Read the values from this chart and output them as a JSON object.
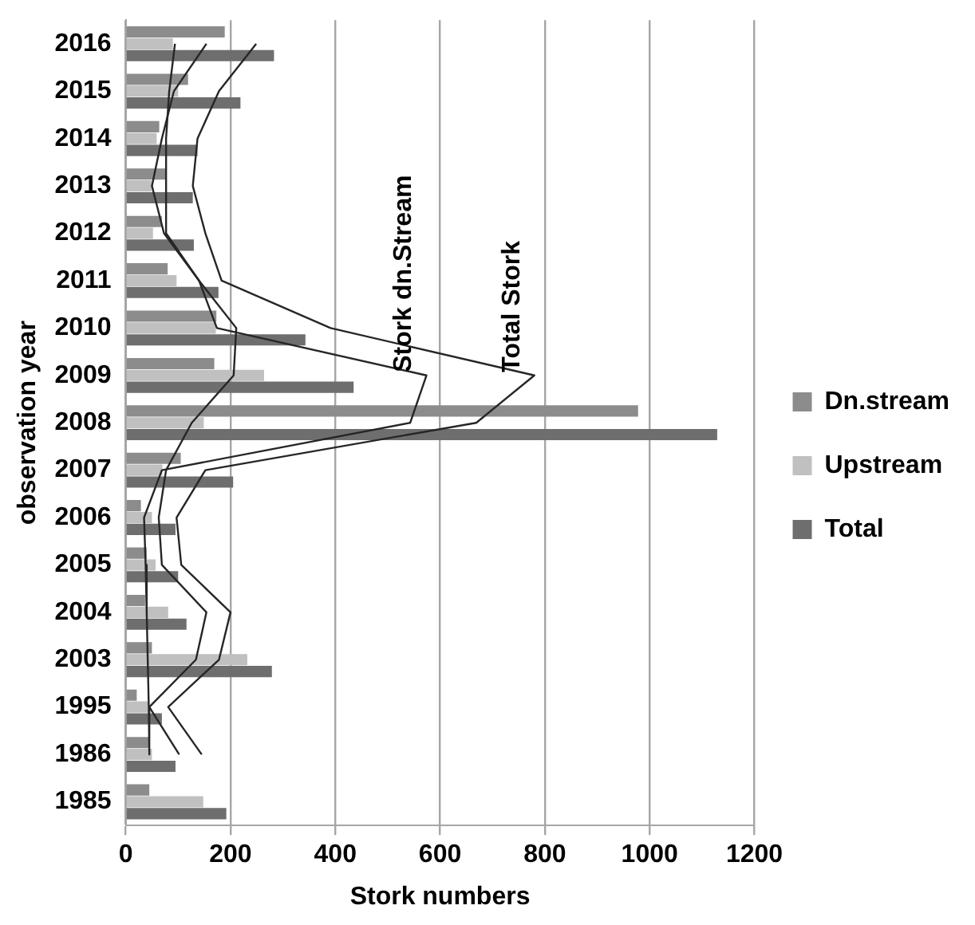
{
  "chart_data": {
    "type": "bar",
    "orientation": "horizontal",
    "xlabel": "Stork numbers",
    "ylabel": "observation year",
    "categories": [
      "2016",
      "2015",
      "2014",
      "2013",
      "2012",
      "2011",
      "2010",
      "2009",
      "2008",
      "2007",
      "2006",
      "2005",
      "2004",
      "2003",
      "1995",
      "1986",
      "1985"
    ],
    "series": [
      {
        "name": "Dn.stream",
        "color": "#8c8c8c",
        "values": [
          189,
          119,
          64,
          78,
          69,
          80,
          173,
          169,
          978,
          105,
          29,
          40,
          37,
          50,
          21,
          45,
          45
        ]
      },
      {
        "name": "Upstream",
        "color": "#c0c0c0",
        "values": [
          90,
          100,
          59,
          49,
          52,
          97,
          172,
          264,
          149,
          70,
          50,
          57,
          81,
          232,
          45,
          50,
          148
        ]
      },
      {
        "name": "Total",
        "color": "#6e6e6e",
        "values": [
          283,
          219,
          137,
          128,
          130,
          177,
          343,
          435,
          1129,
          205,
          95,
          100,
          116,
          279,
          69,
          95,
          192
        ]
      },
      {
        "type": "line",
        "name": "Stork dn.Stream",
        "color": "#262626",
        "values": [
          94,
          83,
          77,
          77,
          77,
          140,
          174,
          574,
          543,
          69,
          35,
          38,
          40,
          42,
          44,
          45,
          null
        ]
      },
      {
        "type": "line",
        "color": "#262626",
        "values": [
          154,
          92,
          69,
          50,
          73,
          140,
          211,
          206,
          126,
          77,
          63,
          69,
          154,
          134,
          45,
          102,
          null
        ]
      },
      {
        "type": "line",
        "name": "Total Stork",
        "color": "#262626",
        "values": [
          249,
          178,
          137,
          128,
          152,
          183,
          391,
          780,
          669,
          152,
          97,
          106,
          200,
          178,
          81,
          145,
          null
        ]
      }
    ],
    "xlim": [
      0,
      1200
    ],
    "xticks": [
      0,
      200,
      400,
      600,
      800,
      1000,
      1200
    ],
    "grid": "x",
    "legend": "right",
    "marker": "none"
  }
}
